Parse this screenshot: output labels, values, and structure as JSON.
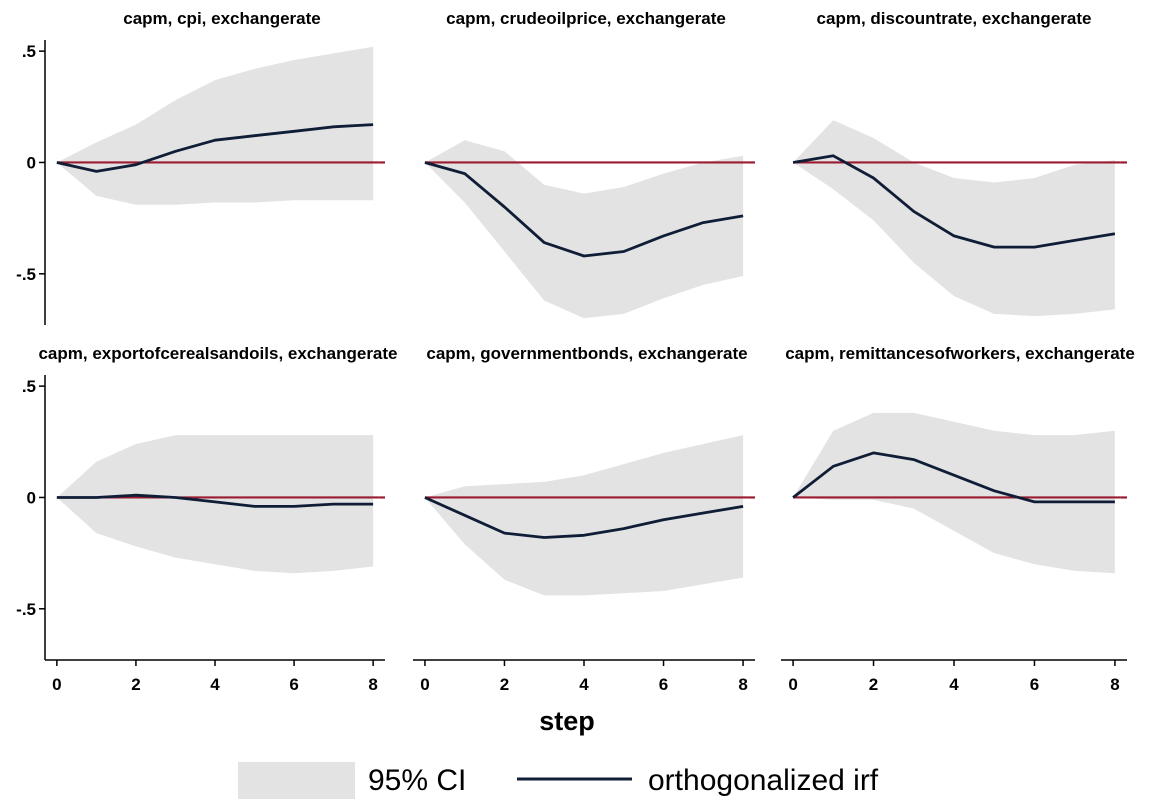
{
  "chart_data": {
    "type": "line",
    "xlabel": "step",
    "ylim": [
      -0.73,
      0.55
    ],
    "xlim": [
      -0.3,
      8.3
    ],
    "yticks": [
      0.5,
      0,
      -0.5
    ],
    "ytick_labels": [
      ".5",
      "0",
      "-.5"
    ],
    "xticks": [
      0,
      2,
      4,
      6,
      8
    ],
    "xtick_labels": [
      "0",
      "2",
      "4",
      "6",
      "8"
    ],
    "grid": false,
    "legend": {
      "placement": "bottom",
      "entries": [
        {
          "label": "95% CI",
          "kind": "area",
          "color": "#e3e3e3"
        },
        {
          "label": "orthogonalized irf",
          "kind": "line",
          "color": "#0f1e36"
        }
      ]
    },
    "zero_line_color": "#9b1b30",
    "panels": [
      {
        "title": "capm, cpi, exchangerate",
        "x": [
          0,
          1,
          2,
          3,
          4,
          5,
          6,
          7,
          8
        ],
        "irf": [
          0,
          -0.04,
          -0.01,
          0.05,
          0.1,
          0.12,
          0.14,
          0.16,
          0.17
        ],
        "ci_lower": [
          0,
          -0.15,
          -0.19,
          -0.19,
          -0.18,
          -0.18,
          -0.17,
          -0.17,
          -0.17
        ],
        "ci_upper": [
          0,
          0.09,
          0.17,
          0.28,
          0.37,
          0.42,
          0.46,
          0.49,
          0.52
        ]
      },
      {
        "title": "capm, crudeoilprice, exchangerate",
        "x": [
          0,
          1,
          2,
          3,
          4,
          5,
          6,
          7,
          8
        ],
        "irf": [
          0,
          -0.05,
          -0.2,
          -0.36,
          -0.42,
          -0.4,
          -0.33,
          -0.27,
          -0.24
        ],
        "ci_lower": [
          0,
          -0.18,
          -0.4,
          -0.62,
          -0.7,
          -0.68,
          -0.61,
          -0.55,
          -0.51
        ],
        "ci_upper": [
          0,
          0.1,
          0.05,
          -0.1,
          -0.14,
          -0.11,
          -0.05,
          0.0,
          0.03
        ]
      },
      {
        "title": "capm, discountrate, exchangerate",
        "x": [
          0,
          1,
          2,
          3,
          4,
          5,
          6,
          7,
          8
        ],
        "irf": [
          0,
          0.03,
          -0.07,
          -0.22,
          -0.33,
          -0.38,
          -0.38,
          -0.35,
          -0.32
        ],
        "ci_lower": [
          0,
          -0.12,
          -0.26,
          -0.45,
          -0.6,
          -0.68,
          -0.69,
          -0.68,
          -0.66
        ],
        "ci_upper": [
          0,
          0.19,
          0.11,
          0.0,
          -0.07,
          -0.09,
          -0.07,
          -0.01,
          0.01
        ]
      },
      {
        "title": "capm, exportofcerealsandoils, exchangerate",
        "x": [
          0,
          1,
          2,
          3,
          4,
          5,
          6,
          7,
          8
        ],
        "irf": [
          0,
          0.0,
          0.01,
          0.0,
          -0.02,
          -0.04,
          -0.04,
          -0.03,
          -0.03
        ],
        "ci_lower": [
          0,
          -0.16,
          -0.22,
          -0.27,
          -0.3,
          -0.33,
          -0.34,
          -0.33,
          -0.31
        ],
        "ci_upper": [
          0,
          0.16,
          0.24,
          0.28,
          0.28,
          0.28,
          0.28,
          0.28,
          0.28
        ]
      },
      {
        "title": "capm, governmentbonds, exchangerate",
        "x": [
          0,
          1,
          2,
          3,
          4,
          5,
          6,
          7,
          8
        ],
        "irf": [
          0,
          -0.08,
          -0.16,
          -0.18,
          -0.17,
          -0.14,
          -0.1,
          -0.07,
          -0.04
        ],
        "ci_lower": [
          0,
          -0.21,
          -0.37,
          -0.44,
          -0.44,
          -0.43,
          -0.42,
          -0.39,
          -0.36
        ],
        "ci_upper": [
          0,
          0.05,
          0.06,
          0.07,
          0.1,
          0.15,
          0.2,
          0.24,
          0.28
        ]
      },
      {
        "title": "capm, remittancesofworkers, exchangerate",
        "x": [
          0,
          1,
          2,
          3,
          4,
          5,
          6,
          7,
          8
        ],
        "irf": [
          0,
          0.14,
          0.2,
          0.17,
          0.1,
          0.03,
          -0.02,
          -0.02,
          -0.02
        ],
        "ci_lower": [
          0,
          -0.01,
          -0.01,
          -0.05,
          -0.15,
          -0.25,
          -0.3,
          -0.33,
          -0.34
        ],
        "ci_upper": [
          0,
          0.3,
          0.38,
          0.38,
          0.34,
          0.3,
          0.28,
          0.28,
          0.3
        ]
      }
    ]
  }
}
